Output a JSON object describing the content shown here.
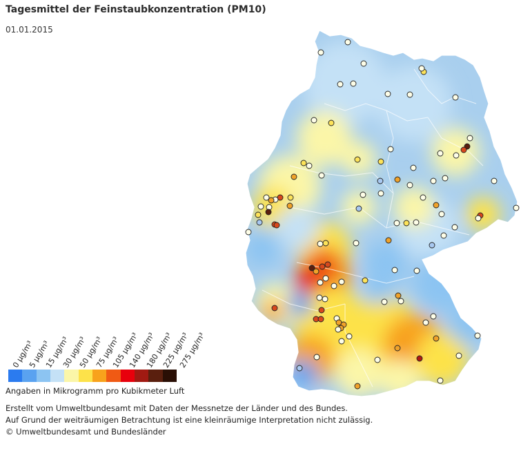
{
  "title": "Tagesmittel der Feinstaubkonzentration (PM10)",
  "date": "01.01.2015",
  "legend": {
    "ticks": [
      "0 µg/m³",
      "5 µg/m³",
      "15 µg/m³",
      "30 µg/m³",
      "50 µg/m³",
      "75 µg/m³",
      "105 µg/m³",
      "140 µg/m³",
      "180 µg/m³",
      "225 µg/m³",
      "275 µg/m³"
    ],
    "colors": [
      "#2b7bef",
      "#5aa2f0",
      "#8cc4f2",
      "#c4e1f6",
      "#fbf6a8",
      "#fde24a",
      "#f8a21c",
      "#f05a14",
      "#e8000c",
      "#a11a12",
      "#5a1f0e",
      "#2a0f05"
    ],
    "unit_text": "Angaben in Mikrogramm pro Kubikmeter Luft"
  },
  "footer": {
    "line1": "Erstellt vom Umweltbundesamt mit Daten der Messnetze der Länder und des Bundes.",
    "line2": "Auf Grund der weiträumigen Betrachtung ist eine kleinräumige Interpretation nicht zulässig.",
    "line3": "© Umweltbundesamt und Bundesländer"
  },
  "map": {
    "country": "Deutschland",
    "background_color": "#a9cfee",
    "station_classes": {
      "light": "#fefee8",
      "yellow": "#fde35a",
      "orange": "#f0a22a",
      "red": "#d8481c",
      "darkred": "#b11a10",
      "brown": "#5a1f0e",
      "blue": "#a8c8f0"
    }
  }
}
